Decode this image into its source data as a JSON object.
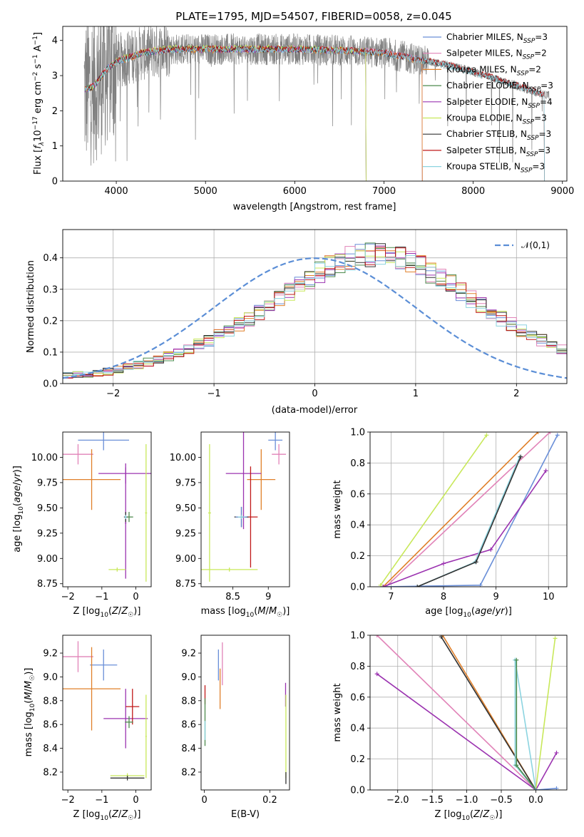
{
  "title": "PLATE=1795, MJD=54507, FIBERID=0058, z=0.045",
  "colors": {
    "data": "#808080",
    "Chabrier MILES": "#6a8fd8",
    "Salpeter MILES": "#e183b8",
    "Kroupa MILES": "#e0802a",
    "Chabrier ELODIE": "#4d8a4d",
    "Salpeter ELODIE": "#9b33b0",
    "Kroupa ELODIE": "#c8e85a",
    "Chabrier STELIB": "#333333",
    "Salpeter STELIB": "#c01818",
    "Kroupa STELIB": "#8cd4e0",
    "normal_curve": "#5b8ed6"
  },
  "chart_data": [
    {
      "id": "spectrum",
      "type": "line",
      "xlabel": "wavelength [Angstrom, rest frame]",
      "ylabel": "Flux [f_λ 10^-17 erg cm^-2 s^-1 A^-1]",
      "xlim": [
        3400,
        9050
      ],
      "ylim": [
        0,
        4.4
      ],
      "xticks": [
        4000,
        5000,
        6000,
        7000,
        8000,
        9000
      ],
      "yticks": [
        0,
        1,
        2,
        3,
        4
      ],
      "legend_position": "upper right",
      "series": [
        {
          "name": "Chabrier MILES, N_SSP=3",
          "base": "Chabrier MILES",
          "xmax": 7430,
          "offset": 0.0
        },
        {
          "name": "Salpeter MILES, N_SSP=2",
          "base": "Salpeter MILES",
          "xmax": 7430,
          "offset": 0.02
        },
        {
          "name": "Kroupa MILES, N_SSP=2",
          "base": "Kroupa MILES",
          "xmax": 7430,
          "offset": -0.02
        },
        {
          "name": "Chabrier ELODIE, N_SSP=3",
          "base": "Chabrier ELODIE",
          "xmax": 6800,
          "offset": 0.01
        },
        {
          "name": "Salpeter ELODIE, N_SSP=4",
          "base": "Salpeter ELODIE",
          "xmax": 6800,
          "offset": -0.01
        },
        {
          "name": "Kroupa ELODIE, N_SSP=3",
          "base": "Kroupa ELODIE",
          "xmax": 6800,
          "offset": 0.03
        },
        {
          "name": "Chabrier STELIB, N_SSP=3",
          "base": "Chabrier STELIB",
          "xmax": 8800,
          "offset": 0.0
        },
        {
          "name": "Salpeter STELIB, N_SSP=3",
          "base": "Salpeter STELIB",
          "xmax": 8800,
          "offset": 0.015
        },
        {
          "name": "Kroupa STELIB, N_SSP=3",
          "base": "Kroupa STELIB",
          "xmax": 8800,
          "offset": -0.015
        }
      ],
      "continuum": {
        "x": [
          3650,
          3750,
          3900,
          4000,
          4300,
          4600,
          5000,
          5500,
          6000,
          6500,
          7000,
          7400,
          7800,
          8200,
          8500,
          8800
        ],
        "y": [
          2.6,
          2.7,
          3.2,
          3.4,
          3.65,
          3.75,
          3.75,
          3.75,
          3.75,
          3.72,
          3.65,
          3.45,
          3.25,
          2.95,
          2.7,
          2.45
        ]
      }
    },
    {
      "id": "residuals",
      "type": "step",
      "xlabel": "(data-model)/error",
      "ylabel": "Normed distribution",
      "xlim": [
        -2.5,
        2.5
      ],
      "ylim": [
        0,
        0.49
      ],
      "xticks": [
        -2,
        -1,
        0,
        1,
        2
      ],
      "yticks": [
        0.0,
        0.1,
        0.2,
        0.3,
        0.4
      ],
      "grid": true,
      "legend": "𝒩(0,1)",
      "legend_position": "upper right",
      "bin_width": 0.1,
      "bin_start": -2.5,
      "envelope": [
        0.025,
        0.028,
        0.03,
        0.032,
        0.038,
        0.045,
        0.052,
        0.06,
        0.068,
        0.077,
        0.087,
        0.098,
        0.11,
        0.124,
        0.138,
        0.153,
        0.17,
        0.188,
        0.207,
        0.227,
        0.248,
        0.27,
        0.292,
        0.314,
        0.335,
        0.354,
        0.371,
        0.386,
        0.398,
        0.406,
        0.41,
        0.41,
        0.406,
        0.398,
        0.386,
        0.371,
        0.354,
        0.335,
        0.314,
        0.292,
        0.27,
        0.248,
        0.227,
        0.207,
        0.188,
        0.17,
        0.153,
        0.138,
        0.124,
        0.11,
        0.098,
        0.087,
        0.077,
        0.068,
        0.06,
        0.052,
        0.045,
        0.038,
        0.032,
        0.028,
        0.025
      ]
    },
    {
      "id": "age-vs-Z",
      "type": "errorbar",
      "xlabel": "Z [log10(Z/Z☉)]",
      "ylabel": "age  [log10(age/yr)]",
      "xlim": [
        -2.15,
        0.45
      ],
      "ylim": [
        8.72,
        10.25
      ],
      "xticks": [
        -2,
        -1,
        0
      ],
      "yticks": [
        8.75,
        9.0,
        9.25,
        9.5,
        9.75,
        10.0
      ],
      "ytick_labels": [
        "8.75",
        "9.00",
        "9.25",
        "9.50",
        "9.75",
        "10.00"
      ],
      "points": [
        {
          "base": "Chabrier MILES",
          "x": -0.95,
          "y": 10.17,
          "xerr": 0.75,
          "yerr": 0.1
        },
        {
          "base": "Salpeter MILES",
          "x": -1.7,
          "y": 10.03,
          "xerr": 0.45,
          "yerr": 0.1
        },
        {
          "base": "Kroupa MILES",
          "x": -1.3,
          "y": 9.78,
          "xerr": 0.85,
          "yerr": 0.3
        },
        {
          "base": "Salpeter ELODIE",
          "x": -0.3,
          "y": 9.84,
          "xerr": 0.8,
          "yerr": 0.1
        },
        {
          "base": "Salpeter ELODIE",
          "x": -0.3,
          "y": 9.35,
          "xerr": 0.02,
          "yerr": 0.55
        },
        {
          "base": "Chabrier ELODIE",
          "x": -0.2,
          "y": 9.41,
          "xerr": 0.12,
          "yerr": 0.05
        },
        {
          "base": "Kroupa ELODIE",
          "x": 0.3,
          "y": 9.45,
          "xerr": 0.03,
          "yerr": 0.68
        },
        {
          "base": "Kroupa ELODIE",
          "x": -0.55,
          "y": 8.89,
          "xerr": 0.25,
          "yerr": 0.02
        },
        {
          "base": "Chabrier STELIB",
          "x": -0.3,
          "y": 9.41,
          "xerr": 0.05,
          "yerr": 0.05
        },
        {
          "base": "Kroupa STELIB",
          "x": -0.3,
          "y": 9.41,
          "xerr": 0.03,
          "yerr": 0.02
        }
      ]
    },
    {
      "id": "age-vs-mass",
      "type": "errorbar",
      "xlabel": "mass [log10(M/M☉)]",
      "ylabel": "",
      "xlim": [
        8.05,
        9.3
      ],
      "ylim": [
        8.72,
        10.25
      ],
      "xticks": [
        8.5,
        9.0
      ],
      "yticks": [
        8.75,
        9.0,
        9.25,
        9.5,
        9.75,
        10.0
      ],
      "ytick_labels": [
        "8.75",
        "9.00",
        "9.25",
        "9.50",
        "9.75",
        "10.00"
      ],
      "points": [
        {
          "base": "Chabrier MILES",
          "x": 9.1,
          "y": 10.17,
          "xerr": 0.1,
          "yerr": 0.1
        },
        {
          "base": "Salpeter MILES",
          "x": 9.15,
          "y": 10.03,
          "xerr": 0.1,
          "yerr": 0.1
        },
        {
          "base": "Kroupa MILES",
          "x": 8.9,
          "y": 9.78,
          "xerr": 0.2,
          "yerr": 0.3
        },
        {
          "base": "Salpeter ELODIE",
          "x": 8.65,
          "y": 9.84,
          "xerr": 0.25,
          "yerr": 0.55
        },
        {
          "base": "Salpeter STELIB",
          "x": 8.75,
          "y": 9.41,
          "xerr": 0.1,
          "yerr": 0.5
        },
        {
          "base": "Chabrier STELIB",
          "x": 8.62,
          "y": 9.41,
          "xerr": 0.1,
          "yerr": 0.1
        },
        {
          "base": "Chabrier MILES",
          "x": 8.62,
          "y": 9.41,
          "xerr": 0.08,
          "yerr": 0.1
        },
        {
          "base": "Kroupa ELODIE",
          "x": 8.17,
          "y": 9.45,
          "xerr": 0.02,
          "yerr": 0.68
        },
        {
          "base": "Kroupa ELODIE",
          "x": 8.45,
          "y": 8.89,
          "xerr": 0.4,
          "yerr": 0.02
        },
        {
          "base": "Kroupa STELIB",
          "x": 8.62,
          "y": 9.41,
          "xerr": 0.05,
          "yerr": 0.02
        }
      ]
    },
    {
      "id": "massweight-vs-age",
      "type": "line",
      "xlabel": "age  [log10(age/yr)]",
      "ylabel": "mass weight",
      "xlim": [
        6.6,
        10.35
      ],
      "ylim": [
        0,
        1.0
      ],
      "xticks": [
        7,
        8,
        9,
        10
      ],
      "yticks": [
        0.0,
        0.2,
        0.4,
        0.6,
        0.8,
        1.0
      ],
      "grid": true,
      "series": [
        {
          "base": "Kroupa ELODIE",
          "x": [
            6.8,
            8.82
          ],
          "y": [
            0.01,
            0.98
          ]
        },
        {
          "base": "Kroupa MILES",
          "x": [
            6.85,
            9.8
          ],
          "y": [
            0.0,
            1.0
          ]
        },
        {
          "base": "Salpeter MILES",
          "x": [
            6.9,
            10.03
          ],
          "y": [
            0.0,
            1.0
          ]
        },
        {
          "base": "Chabrier MILES",
          "x": [
            6.85,
            8.7,
            10.17
          ],
          "y": [
            0.0,
            0.01,
            0.98
          ]
        },
        {
          "base": "Salpeter ELODIE",
          "x": [
            6.85,
            8.0,
            8.9,
            9.95
          ],
          "y": [
            0.0,
            0.15,
            0.24,
            0.75
          ]
        },
        {
          "base": "Kroupa STELIB",
          "x": [
            7.5,
            8.6,
            9.45
          ],
          "y": [
            0.0,
            0.16,
            0.84
          ]
        },
        {
          "base": "Chabrier STELIB",
          "x": [
            7.5,
            8.62,
            9.47
          ],
          "y": [
            0.0,
            0.16,
            0.84
          ]
        }
      ]
    },
    {
      "id": "mass-vs-Z",
      "type": "errorbar",
      "xlabel": "Z [log10(Z/Z☉)]",
      "ylabel": "mass [log10(M/M☉)]",
      "xlim": [
        -2.15,
        0.45
      ],
      "ylim": [
        8.05,
        9.35
      ],
      "xticks": [
        -2,
        -1,
        0
      ],
      "yticks": [
        8.2,
        8.4,
        8.6,
        8.8,
        9.0,
        9.2
      ],
      "points": [
        {
          "base": "Chabrier MILES",
          "x": -0.95,
          "y": 9.1,
          "xerr": 0.4,
          "yerr": 0.13
        },
        {
          "base": "Salpeter MILES",
          "x": -1.7,
          "y": 9.17,
          "xerr": 0.45,
          "yerr": 0.13
        },
        {
          "base": "Kroupa MILES",
          "x": -1.3,
          "y": 8.9,
          "xerr": 0.85,
          "yerr": 0.35
        },
        {
          "base": "Salpeter ELODIE",
          "x": -0.3,
          "y": 8.65,
          "xerr": 0.65,
          "yerr": 0.25
        },
        {
          "base": "Salpeter STELIB",
          "x": -0.1,
          "y": 8.75,
          "xerr": 0.2,
          "yerr": 0.15
        },
        {
          "base": "Chabrier ELODIE",
          "x": -0.2,
          "y": 8.62,
          "xerr": 0.12,
          "yerr": 0.05
        },
        {
          "base": "Kroupa ELODIE",
          "x": 0.3,
          "y": 8.5,
          "xerr": 0.02,
          "yerr": 0.35
        },
        {
          "base": "Kroupa ELODIE",
          "x": -0.25,
          "y": 8.17,
          "xerr": 0.5,
          "yerr": 0.02
        },
        {
          "base": "Chabrier STELIB",
          "x": -0.25,
          "y": 8.15,
          "xerr": 0.5,
          "yerr": 0.02
        }
      ]
    },
    {
      "id": "mass-vs-ebv",
      "type": "errorbar",
      "xlabel": "E(B-V)",
      "ylabel": "",
      "xlim": [
        -0.01,
        0.26
      ],
      "ylim": [
        8.05,
        9.35
      ],
      "xticks": [
        0.0,
        0.2
      ],
      "yticks": [
        8.2,
        8.4,
        8.6,
        8.8,
        9.0,
        9.2
      ],
      "points": [
        {
          "base": "Chabrier MILES",
          "x": 0.043,
          "y": 9.1,
          "xerr": 0.0,
          "yerr": 0.13
        },
        {
          "base": "Salpeter MILES",
          "x": 0.055,
          "y": 9.11,
          "xerr": 0.0,
          "yerr": 0.18
        },
        {
          "base": "Kroupa MILES",
          "x": 0.048,
          "y": 8.9,
          "xerr": 0.0,
          "yerr": 0.17
        },
        {
          "base": "Salpeter STELIB",
          "x": 0.002,
          "y": 8.85,
          "xerr": 0.0,
          "yerr": 0.08
        },
        {
          "base": "Chabrier ELODIE",
          "x": 0.002,
          "y": 8.62,
          "xerr": 0.0,
          "yerr": 0.2
        },
        {
          "base": "Kroupa STELIB",
          "x": 0.002,
          "y": 8.55,
          "xerr": 0.0,
          "yerr": 0.08
        },
        {
          "base": "Salpeter ELODIE",
          "x": 0.248,
          "y": 8.85,
          "xerr": 0.0,
          "yerr": 0.1
        },
        {
          "base": "Kroupa ELODIE",
          "x": 0.249,
          "y": 8.5,
          "xerr": 0.0,
          "yerr": 0.35
        },
        {
          "base": "Chabrier STELIB",
          "x": 0.249,
          "y": 8.15,
          "xerr": 0.0,
          "yerr": 0.05
        }
      ]
    },
    {
      "id": "massweight-vs-Z",
      "type": "line",
      "xlabel": "Z [log10(Z/Z☉)]",
      "ylabel": "mass weight",
      "xlim": [
        -2.4,
        0.45
      ],
      "ylim": [
        0,
        1.0
      ],
      "xticks": [
        -2.0,
        -1.5,
        -1.0,
        -0.5,
        0.0
      ],
      "xtick_labels": [
        "−2.0",
        "−1.5",
        "−1.0",
        "−0.5",
        "0.0"
      ],
      "yticks": [
        0.0,
        0.2,
        0.4,
        0.6,
        0.8,
        1.0
      ],
      "grid": true,
      "series": [
        {
          "base": "Salpeter MILES",
          "x": [
            -2.3,
            0.0
          ],
          "y": [
            1.0,
            0.0
          ]
        },
        {
          "base": "Salpeter ELODIE",
          "x": [
            -2.3,
            0.0,
            0.3
          ],
          "y": [
            0.75,
            0.0,
            0.24
          ]
        },
        {
          "base": "Kroupa MILES",
          "x": [
            -1.35,
            0.0
          ],
          "y": [
            1.0,
            0.0
          ]
        },
        {
          "base": "Chabrier STELIB",
          "x": [
            -1.37,
            0.0
          ],
          "y": [
            0.99,
            0.0
          ]
        },
        {
          "base": "Kroupa STELIB",
          "x": [
            -0.3,
            -0.3,
            0.0,
            -0.3
          ],
          "y": [
            0.84,
            0.16,
            0.0,
            0.84
          ]
        },
        {
          "base": "Chabrier ELODIE",
          "x": [
            -0.28,
            -0.28,
            0.0
          ],
          "y": [
            0.84,
            0.16,
            0.0
          ]
        },
        {
          "base": "Kroupa ELODIE",
          "x": [
            0.0,
            0.28
          ],
          "y": [
            0.0,
            0.98
          ]
        },
        {
          "base": "Chabrier MILES",
          "x": [
            0.0,
            0.3
          ],
          "y": [
            0.0,
            0.01
          ]
        }
      ]
    }
  ]
}
